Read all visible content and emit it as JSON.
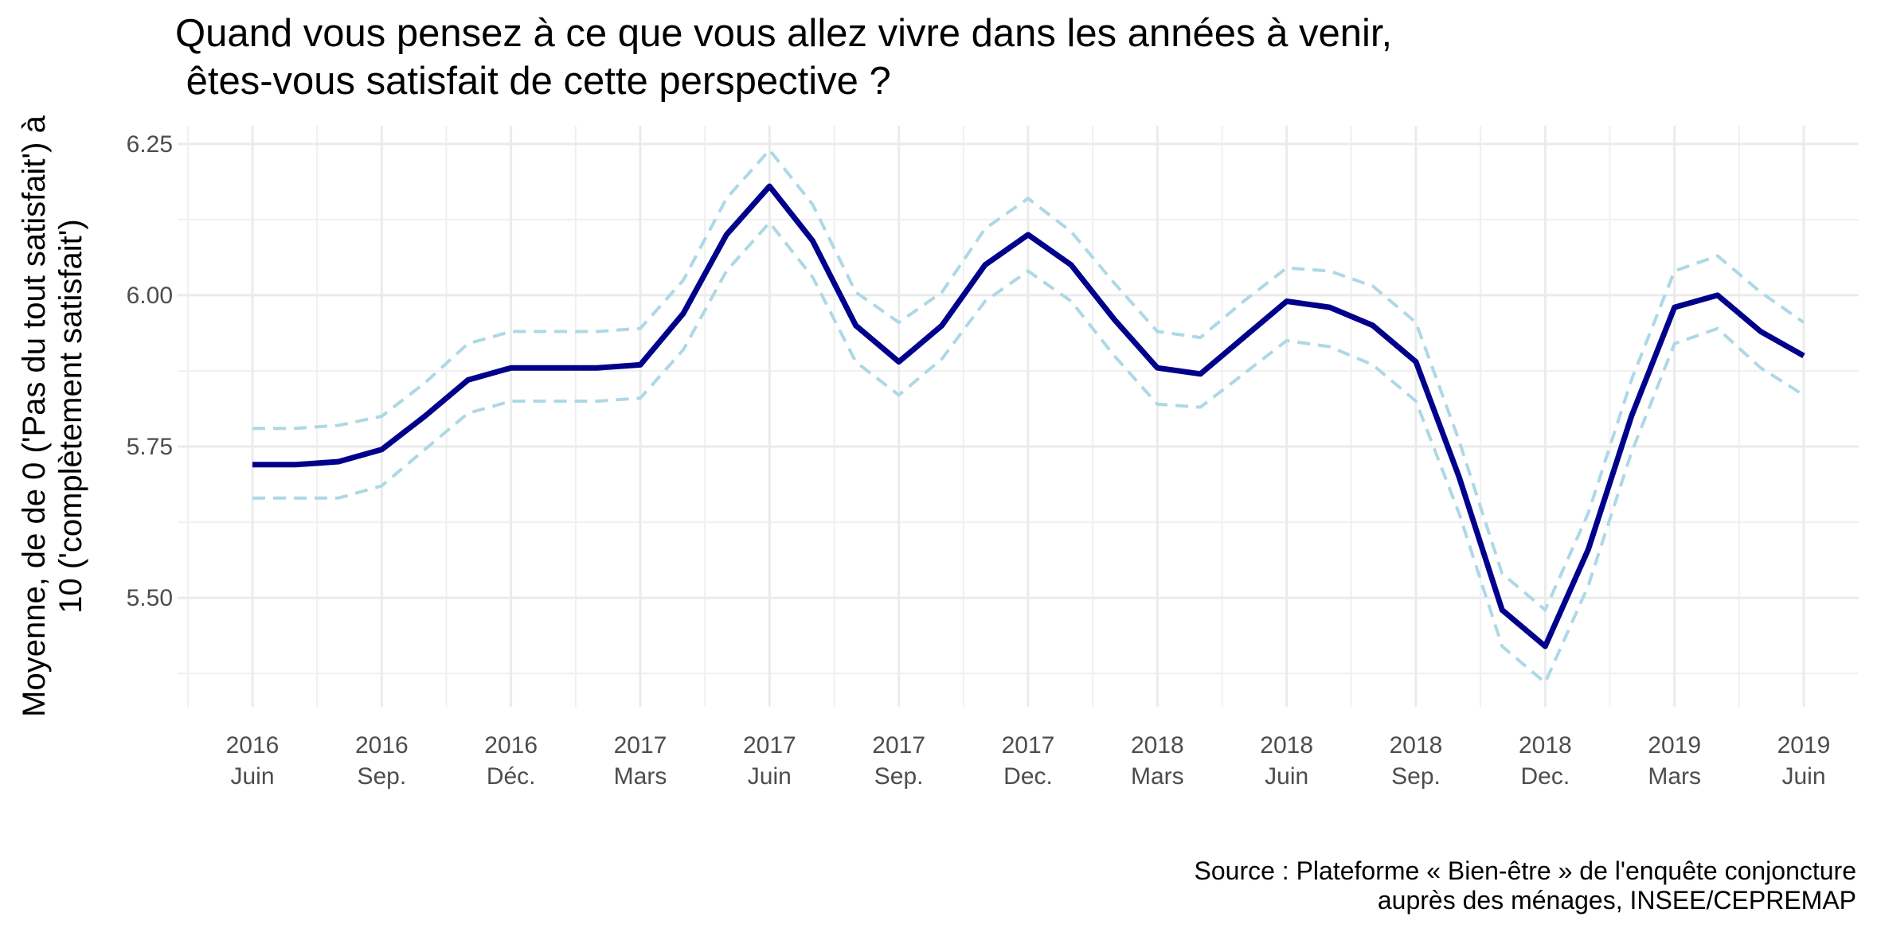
{
  "chart_data": {
    "type": "line",
    "title": [
      "Quand vous pensez à ce que vous allez vivre dans les années à venir,",
      " êtes-vous satisfait de cette perspective ?"
    ],
    "y_label": [
      "Moyenne, de de 0 ('Pas du tout satisfait') à",
      "10 ('complètement satisfait')"
    ],
    "caption": [
      "Source : Plateforme « Bien-être » de l'enquête conjoncture",
      "auprès des ménages, INSEE/CEPREMAP"
    ],
    "categories": [
      [
        "2016",
        "Juin"
      ],
      null,
      null,
      [
        "2016",
        "Sep."
      ],
      null,
      null,
      [
        "2016",
        "Déc."
      ],
      null,
      null,
      [
        "2017",
        "Mars"
      ],
      null,
      null,
      [
        "2017",
        "Juin"
      ],
      null,
      null,
      [
        "2017",
        "Sep."
      ],
      null,
      null,
      [
        "2017",
        "Dec."
      ],
      null,
      null,
      [
        "2018",
        "Mars"
      ],
      null,
      null,
      [
        "2018",
        "Juin"
      ],
      null,
      null,
      [
        "2018",
        "Sep."
      ],
      null,
      null,
      [
        "2018",
        "Dec."
      ],
      null,
      null,
      [
        "2019",
        "Mars"
      ],
      null,
      null,
      [
        "2019",
        "Juin"
      ]
    ],
    "series": [
      {
        "color": "#add8e6",
        "dashed": true,
        "values": [
          5.78,
          5.78,
          5.785,
          5.8,
          5.855,
          5.92,
          5.94,
          5.94,
          5.94,
          5.945,
          6.025,
          6.16,
          6.24,
          6.15,
          6.005,
          5.955,
          6.005,
          6.11,
          6.16,
          6.105,
          6.02,
          5.94,
          5.93,
          5.99,
          6.045,
          6.04,
          6.015,
          5.955,
          5.76,
          5.54,
          5.48,
          5.64,
          5.86,
          6.04,
          6.065,
          6.005,
          5.955
        ]
      },
      {
        "color": "#add8e6",
        "dashed": true,
        "values": [
          5.665,
          5.665,
          5.665,
          5.685,
          5.745,
          5.805,
          5.825,
          5.825,
          5.825,
          5.83,
          5.91,
          6.04,
          6.12,
          6.03,
          5.89,
          5.835,
          5.895,
          5.99,
          6.04,
          5.99,
          5.9,
          5.82,
          5.815,
          5.87,
          5.925,
          5.915,
          5.885,
          5.825,
          5.64,
          5.42,
          5.36,
          5.52,
          5.74,
          5.92,
          5.945,
          5.88,
          5.835
        ]
      },
      {
        "color": "#00008b",
        "dashed": false,
        "values": [
          5.72,
          5.72,
          5.725,
          5.745,
          5.8,
          5.86,
          5.88,
          5.88,
          5.88,
          5.885,
          5.97,
          6.1,
          6.18,
          6.09,
          5.95,
          5.89,
          5.95,
          6.05,
          6.1,
          6.05,
          5.96,
          5.88,
          5.87,
          5.93,
          5.99,
          5.98,
          5.95,
          5.89,
          5.7,
          5.48,
          5.42,
          5.58,
          5.8,
          5.98,
          6.0,
          5.94,
          5.9
        ]
      }
    ],
    "ylim": [
      5.32,
      6.28
    ],
    "yticks": [
      {
        "value": 5.5,
        "label": "5.50"
      },
      {
        "value": 5.75,
        "label": "5.75"
      },
      {
        "value": 6,
        "label": "6.00"
      },
      {
        "value": 6.25,
        "label": "6.25"
      }
    ],
    "grid": true
  }
}
